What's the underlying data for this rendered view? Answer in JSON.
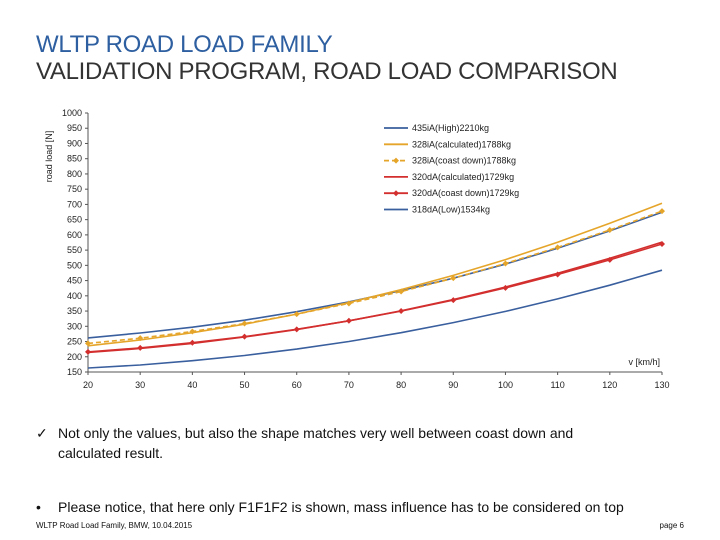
{
  "title": {
    "line1": "WLTP ROAD LOAD FAMILY",
    "line2": "VALIDATION PROGRAM, ROAD LOAD COMPARISON"
  },
  "bullets": [
    {
      "marker": "✓",
      "text": "Not only the values, but also the shape matches very well between coast down and calculated result."
    },
    {
      "marker": "•",
      "text": "Please notice, that here only F1F1F2 is shown, mass influence has to be considered on top"
    }
  ],
  "footer": {
    "left": "WLTP Road Load Family, BMW, 10.04.2015",
    "right": "page 6"
  },
  "colors": {
    "title_blue": "#2e5fa0",
    "series_blue": "#3a5f9e",
    "series_orange": "#e5a52a",
    "series_red": "#d32f2f"
  },
  "chart_data": {
    "type": "line",
    "ylabel": "road load [N]",
    "xlabel": "v [km/h]",
    "xlim": [
      20,
      130
    ],
    "ylim": [
      150,
      1000
    ],
    "x_ticks": [
      20,
      30,
      40,
      50,
      60,
      70,
      80,
      90,
      100,
      110,
      120,
      130
    ],
    "y_ticks": [
      150,
      200,
      250,
      300,
      350,
      400,
      450,
      500,
      550,
      600,
      650,
      700,
      750,
      800,
      850,
      900,
      950,
      1000
    ],
    "grid": false,
    "legend_position": "top-right",
    "x": [
      20,
      30,
      40,
      50,
      60,
      70,
      80,
      90,
      100,
      110,
      120,
      130
    ],
    "series": [
      {
        "name": "435iA(High)2210kg",
        "color": "#3a5f9e",
        "style": "solid",
        "marker": "none",
        "values": [
          262,
          278,
          297,
          320,
          348,
          380,
          417,
          458,
          504,
          556,
          613,
          674
        ]
      },
      {
        "name": "328iA(calculated)1788kg",
        "color": "#e5a52a",
        "style": "solid",
        "marker": "none",
        "values": [
          236,
          255,
          279,
          307,
          340,
          378,
          420,
          467,
          519,
          576,
          638,
          704
        ]
      },
      {
        "name": "328iA(coast down)1788kg",
        "color": "#e5a52a",
        "style": "dashed",
        "marker": "diamond",
        "values": [
          244,
          261,
          283,
          309,
          340,
          375,
          414,
          458,
          506,
          559,
          616,
          678
        ]
      },
      {
        "name": "320dA(calculated)1729kg",
        "color": "#d32f2f",
        "style": "solid",
        "marker": "none",
        "values": [
          214,
          227,
          244,
          265,
          289,
          318,
          351,
          388,
          429,
          474,
          523,
          576
        ]
      },
      {
        "name": "320dA(coast down)1729kg",
        "color": "#d32f2f",
        "style": "solid",
        "marker": "diamond",
        "values": [
          216,
          229,
          246,
          266,
          290,
          318,
          350,
          386,
          426,
          470,
          518,
          570
        ]
      },
      {
        "name": "318dA(Low)1534kg",
        "color": "#3a5f9e",
        "style": "solid",
        "marker": "none",
        "values": [
          163,
          173,
          187,
          204,
          225,
          250,
          279,
          312,
          349,
          390,
          435,
          484
        ]
      }
    ]
  }
}
